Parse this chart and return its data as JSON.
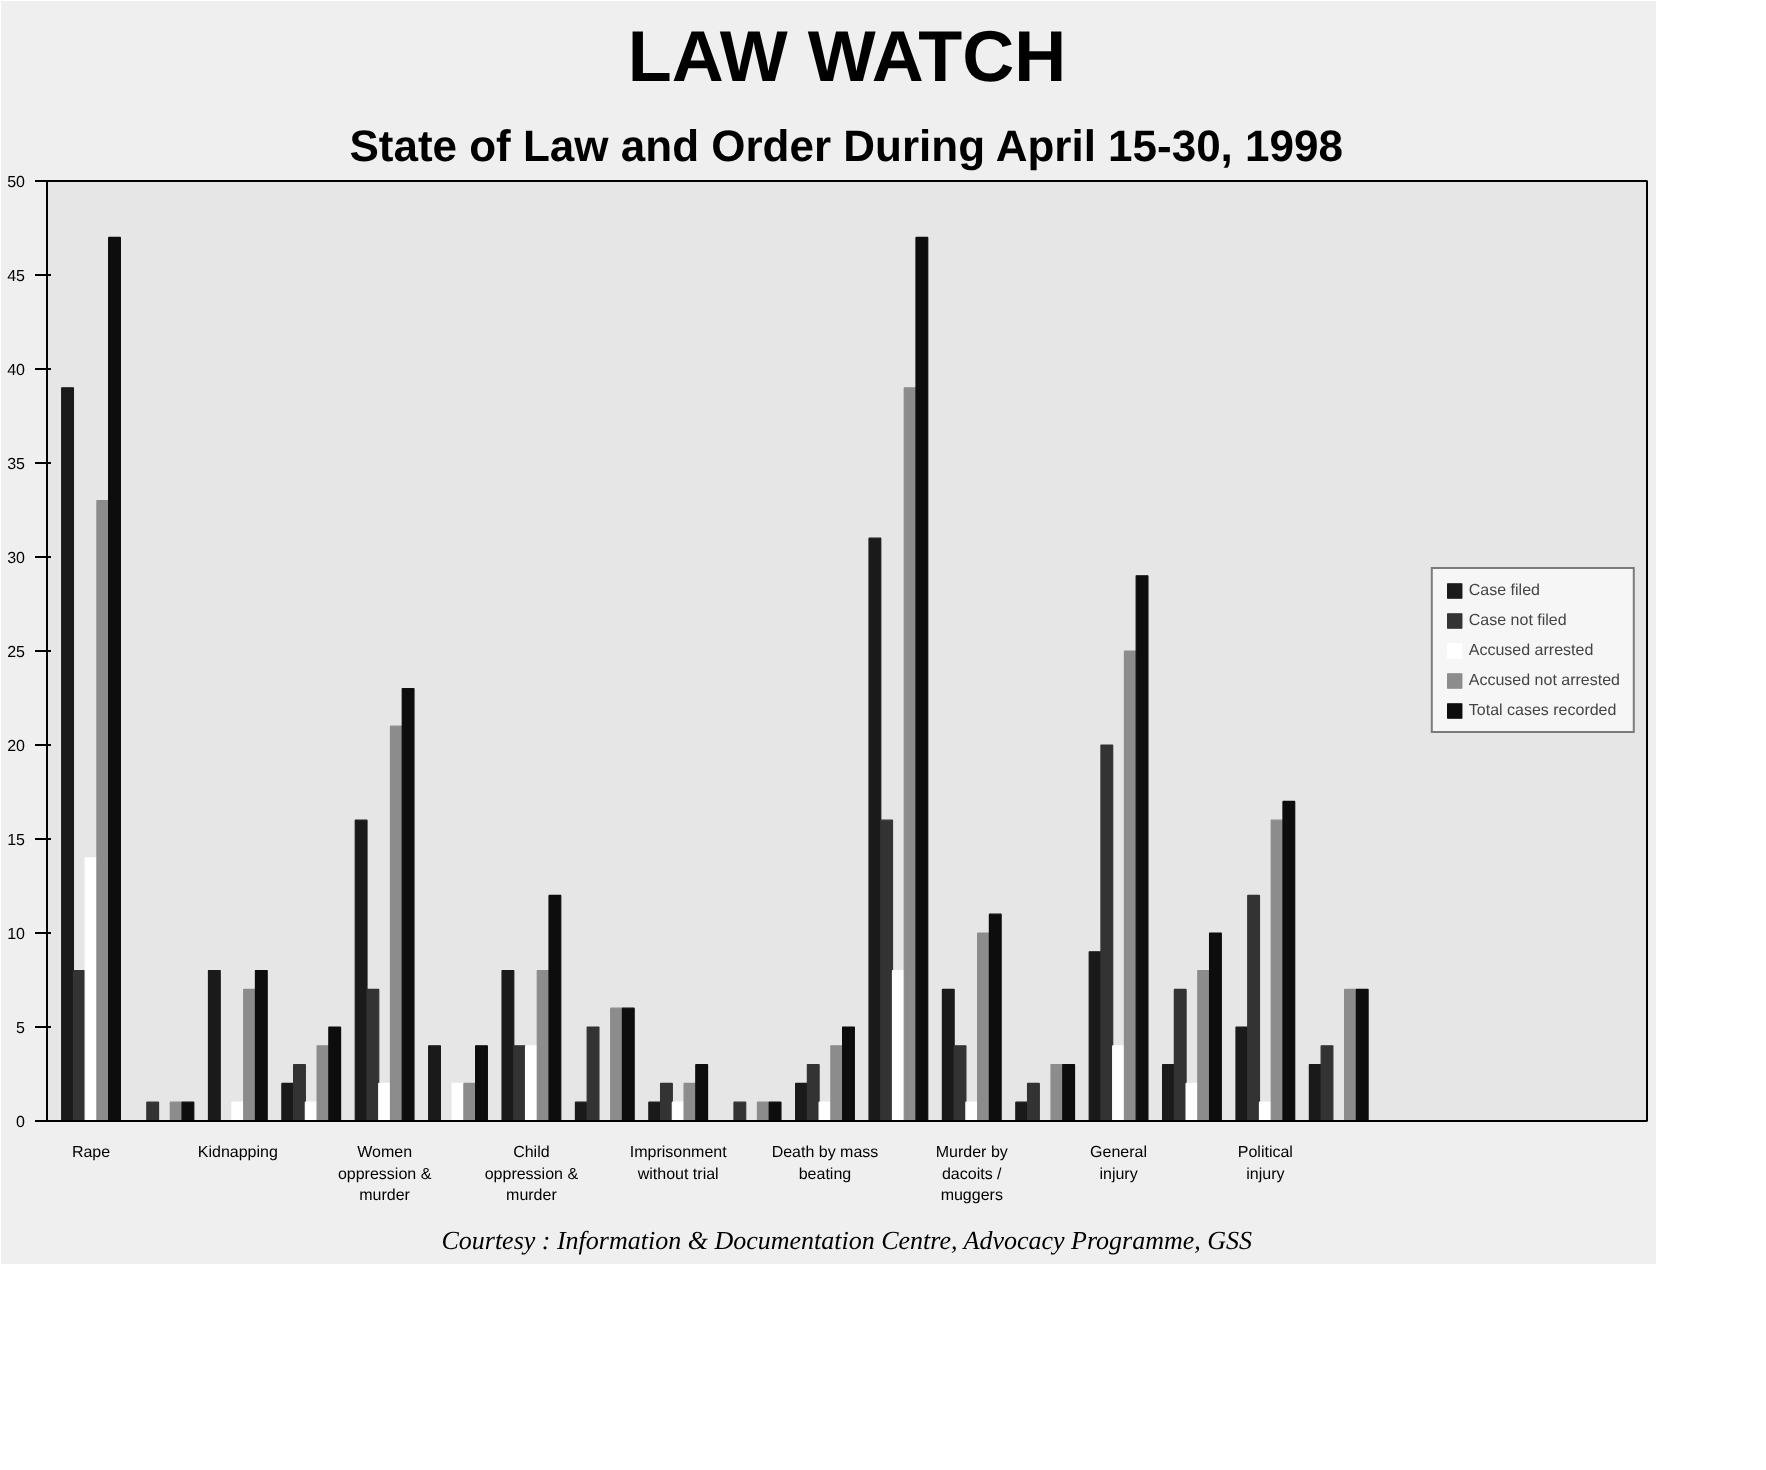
{
  "chart_data": {
    "type": "bar",
    "title": "LAW WATCH",
    "subtitle": "State of Law and Order During April 15-30, 1998",
    "categories": [
      "Rape",
      null,
      "Kidnapping",
      null,
      "Women oppression & murder",
      null,
      "Child oppression & murder",
      null,
      "Imprisonment without trial",
      null,
      "Death by mass beating",
      null,
      "Murder by dacoits / muggers",
      null,
      "General injury",
      null,
      "Political injury",
      null
    ],
    "series": [
      {
        "name": "Case filed",
        "color": "#1a1a1a",
        "values": [
          39,
          0,
          8,
          2,
          16,
          4,
          8,
          1,
          1,
          0,
          2,
          31,
          7,
          1,
          9,
          3,
          5,
          3
        ]
      },
      {
        "name": "Case not filed",
        "color": "#333333",
        "values": [
          8,
          1,
          0,
          3,
          7,
          0,
          4,
          5,
          2,
          1,
          3,
          16,
          4,
          2,
          20,
          7,
          12,
          4
        ]
      },
      {
        "name": "Accused arrested",
        "color": "#ffffff",
        "values": [
          14,
          0,
          1,
          1,
          2,
          2,
          4,
          0,
          1,
          0,
          1,
          8,
          1,
          0,
          4,
          2,
          1,
          0
        ]
      },
      {
        "name": "Accused not arrested",
        "color": "#8c8c8c",
        "values": [
          33,
          1,
          7,
          4,
          21,
          2,
          8,
          6,
          2,
          1,
          4,
          39,
          10,
          3,
          25,
          8,
          16,
          7
        ]
      },
      {
        "name": "Total cases recorded",
        "color": "#0d0d0d",
        "values": [
          47,
          1,
          8,
          5,
          23,
          4,
          12,
          6,
          3,
          1,
          5,
          47,
          11,
          3,
          29,
          10,
          17,
          7
        ]
      }
    ],
    "ylim": [
      0,
      50
    ],
    "yticks": [
      0,
      5,
      10,
      15,
      20,
      25,
      30,
      35,
      40,
      45,
      50
    ],
    "grid": false,
    "legend": "right",
    "annotations": [
      "Courtesy : Information & Documentation Centre, Advocacy Programme, GSS"
    ]
  }
}
